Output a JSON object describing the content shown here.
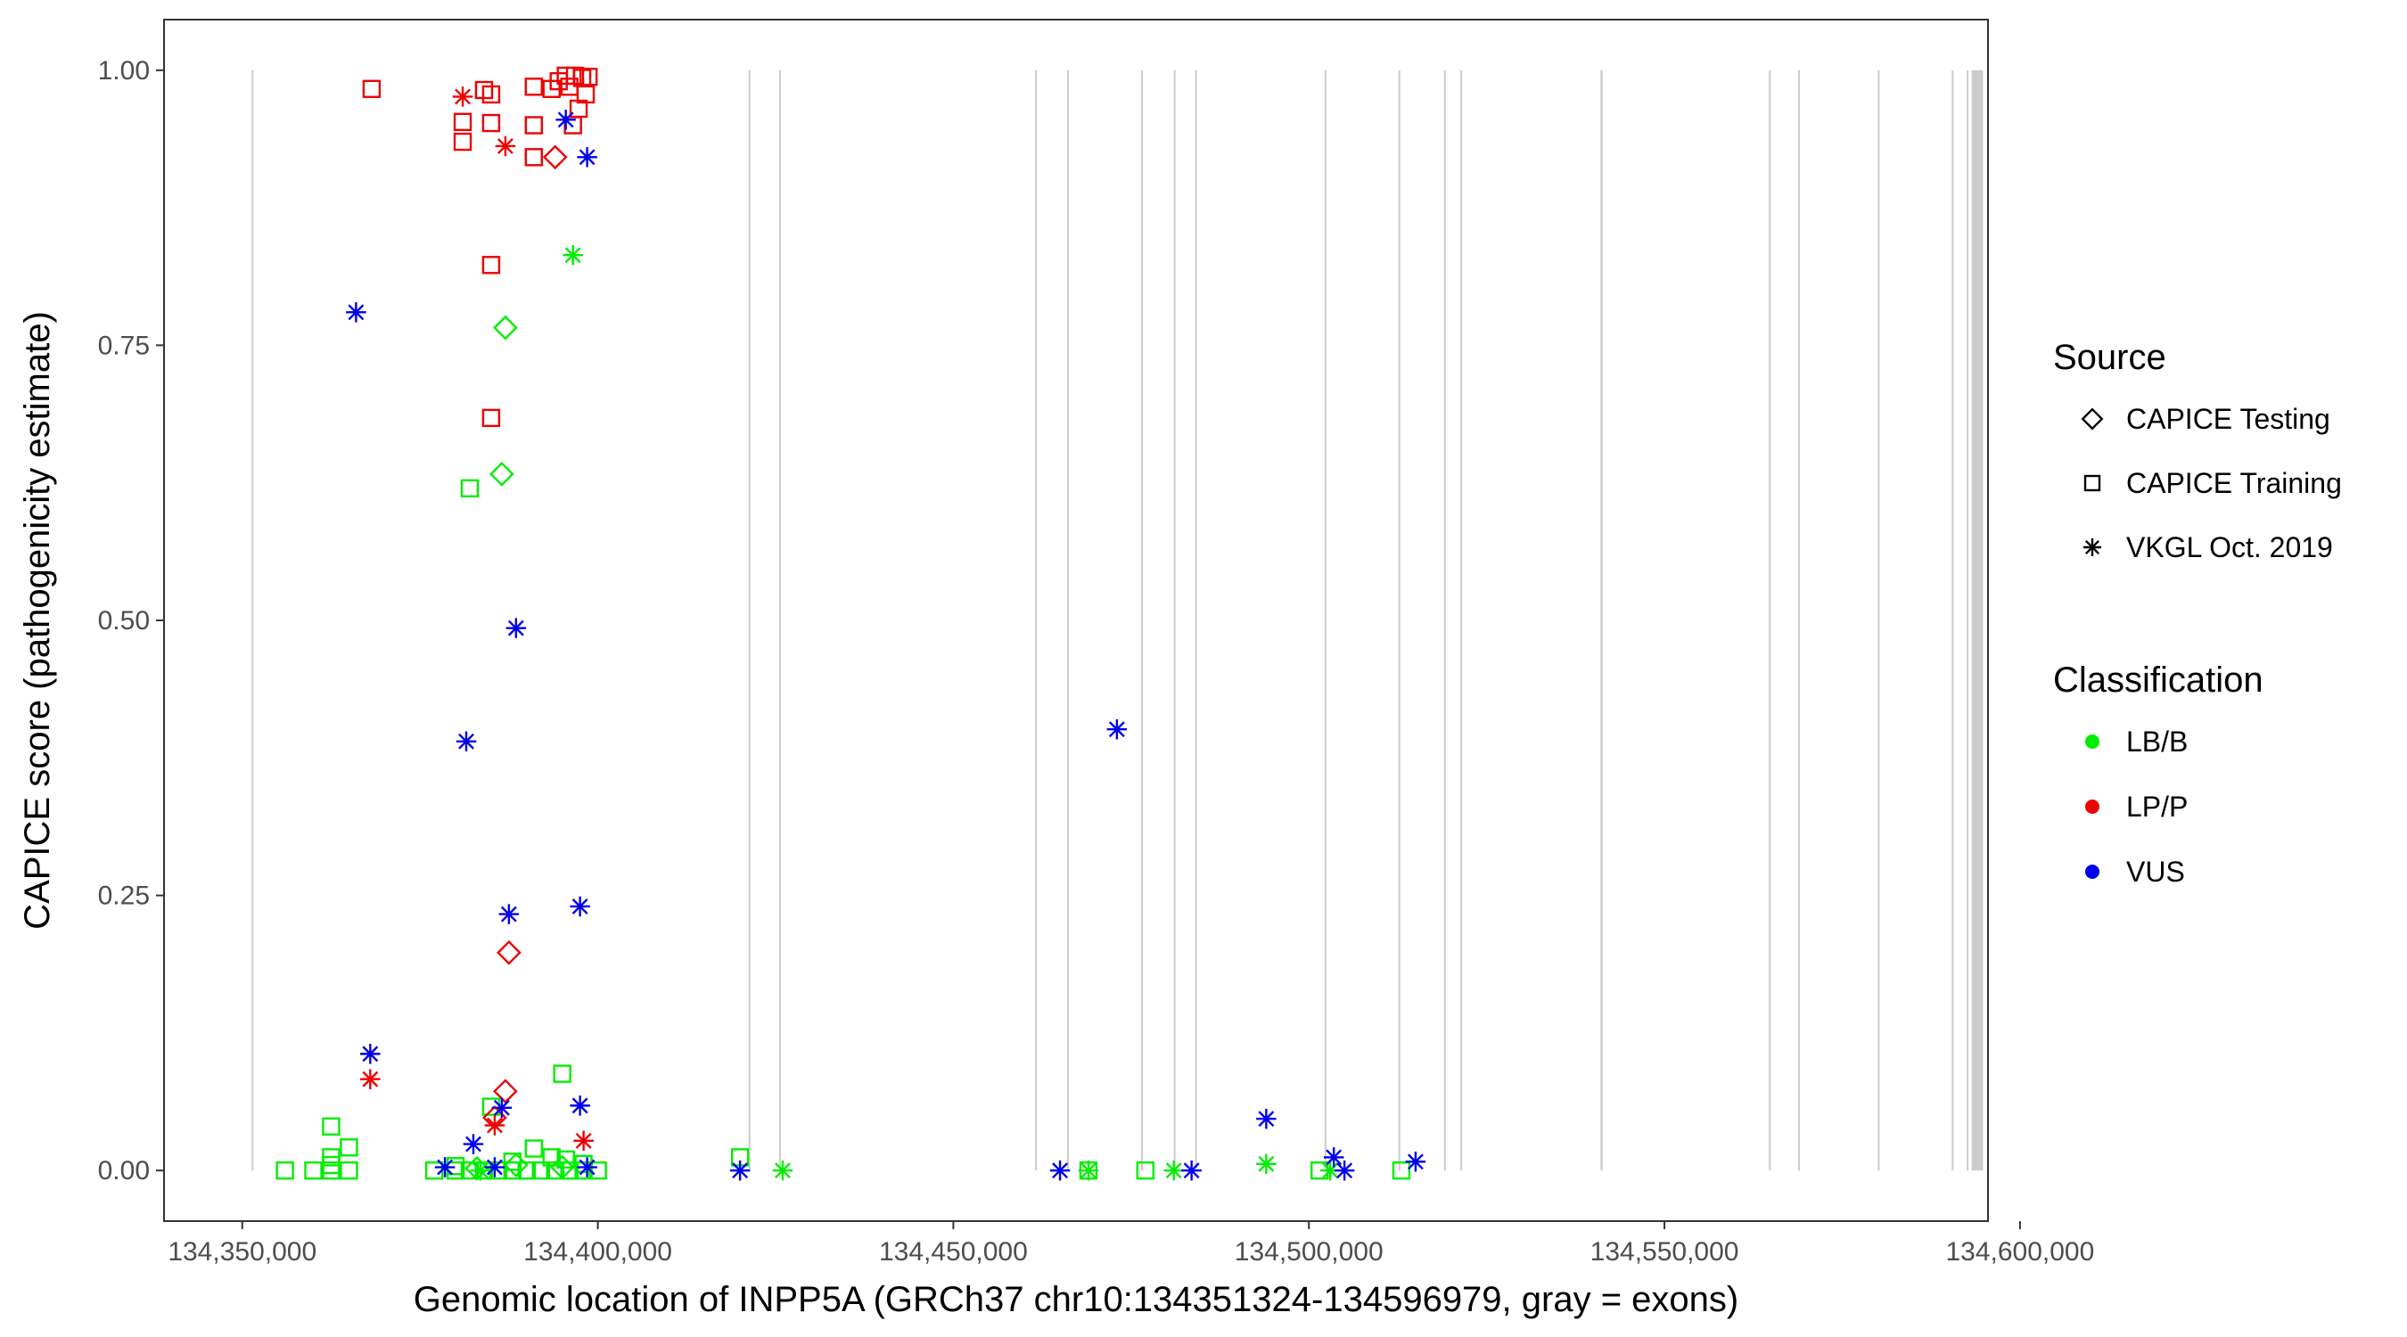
{
  "chart_data": {
    "type": "scatter",
    "title": "",
    "xlabel": "Genomic location of INPP5A (GRCh37 chr10:134351324-134596979, gray = exons)",
    "ylabel": "CAPICE score (pathogenicity estimate)",
    "xlim": [
      134339000,
      134595500
    ],
    "ylim": [
      -0.046,
      1.046
    ],
    "x_ticks": [
      134350000,
      134400000,
      134450000,
      134500000,
      134550000,
      134600000
    ],
    "x_tick_labels": [
      "134,350,000",
      "134,400,000",
      "134,450,000",
      "134,500,000",
      "134,550,000",
      "134,600,000"
    ],
    "y_ticks": [
      0,
      0.25,
      0.5,
      0.75,
      1.0
    ],
    "y_tick_labels": [
      "0.00",
      "0.25",
      "0.50",
      "0.75",
      "1.00"
    ],
    "grid": false,
    "legend_position": "right",
    "exons": [
      {
        "start": 134351324,
        "end": 134351480
      },
      {
        "start": 134421200,
        "end": 134421300
      },
      {
        "start": 134425500,
        "end": 134425600
      },
      {
        "start": 134461500,
        "end": 134461600
      },
      {
        "start": 134466000,
        "end": 134466100
      },
      {
        "start": 134476400,
        "end": 134476500
      },
      {
        "start": 134481000,
        "end": 134481100
      },
      {
        "start": 134484000,
        "end": 134484100
      },
      {
        "start": 134502200,
        "end": 134502300
      },
      {
        "start": 134512600,
        "end": 134512700
      },
      {
        "start": 134519000,
        "end": 134519100
      },
      {
        "start": 134521300,
        "end": 134521400
      },
      {
        "start": 134541000,
        "end": 134541300
      },
      {
        "start": 134564700,
        "end": 134564900
      },
      {
        "start": 134568800,
        "end": 134569000
      },
      {
        "start": 134580000,
        "end": 134580100
      },
      {
        "start": 134590400,
        "end": 134590500
      },
      {
        "start": 134592500,
        "end": 134592600
      },
      {
        "start": 134593200,
        "end": 134594800
      }
    ],
    "legend": {
      "source_title": "Source",
      "source_items": [
        {
          "label": "CAPICE Testing",
          "shape": "diamond"
        },
        {
          "label": "CAPICE Training",
          "shape": "square"
        },
        {
          "label": "VKGL Oct. 2019",
          "shape": "asterisk"
        }
      ],
      "class_title": "Classification",
      "class_items": [
        {
          "label": "LB/B",
          "color": "#00ee00"
        },
        {
          "label": "LP/P",
          "color": "#ee0000"
        },
        {
          "label": "VUS",
          "color": "#0000ee"
        }
      ]
    },
    "colors": {
      "LB/B": "#00ee00",
      "LP/P": "#ee0000",
      "VUS": "#0000ee"
    },
    "series": [
      {
        "name": "CAPICE Training",
        "shape": "square",
        "class": "LP/P",
        "points": [
          [
            134368200,
            0.983
          ],
          [
            134381000,
            0.953
          ],
          [
            134381000,
            0.935
          ],
          [
            134384000,
            0.982
          ],
          [
            134385000,
            0.978
          ],
          [
            134385000,
            0.952
          ],
          [
            134391000,
            0.985
          ],
          [
            134391000,
            0.95
          ],
          [
            134391000,
            0.921
          ],
          [
            134393500,
            0.983
          ],
          [
            134394500,
            0.99
          ],
          [
            134395500,
            0.995
          ],
          [
            134396000,
            0.985
          ],
          [
            134396800,
            0.995
          ],
          [
            134397300,
            0.965
          ],
          [
            134397800,
            0.993
          ],
          [
            134398300,
            0.978
          ],
          [
            134398700,
            0.994
          ],
          [
            134396500,
            0.95
          ],
          [
            134385000,
            0.823
          ],
          [
            134385000,
            0.684
          ]
        ]
      },
      {
        "name": "CAPICE Training",
        "shape": "square",
        "class": "LB/B",
        "points": [
          [
            134356000,
            0.0
          ],
          [
            134360000,
            0.0
          ],
          [
            134362500,
            0.0
          ],
          [
            134362500,
            0.005
          ],
          [
            134362500,
            0.012
          ],
          [
            134362500,
            0.04
          ],
          [
            134365000,
            0.0
          ],
          [
            134365000,
            0.021
          ],
          [
            134377000,
            0.0
          ],
          [
            134380000,
            0.0
          ],
          [
            134382000,
            0.0
          ],
          [
            134384000,
            0.0
          ],
          [
            134386000,
            0.0
          ],
          [
            134388000,
            0.0
          ],
          [
            134390000,
            0.0
          ],
          [
            134392000,
            0.0
          ],
          [
            134394000,
            0.0
          ],
          [
            134396000,
            0.0
          ],
          [
            134398000,
            0.0
          ],
          [
            134400000,
            0.0
          ],
          [
            134380000,
            0.004
          ],
          [
            134388000,
            0.008
          ],
          [
            134393500,
            0.012
          ],
          [
            134395500,
            0.01
          ],
          [
            134398000,
            0.006
          ],
          [
            134391000,
            0.02
          ],
          [
            134385000,
            0.058
          ],
          [
            134382000,
            0.62
          ],
          [
            134395000,
            0.088
          ],
          [
            134420000,
            0.012
          ],
          [
            134469000,
            0.0
          ],
          [
            134477000,
            0.0
          ],
          [
            134501500,
            0.0
          ],
          [
            134513000,
            0.0
          ]
        ]
      },
      {
        "name": "CAPICE Testing",
        "shape": "diamond",
        "class": "LP/P",
        "points": [
          [
            134394000,
            0.921
          ],
          [
            134387500,
            0.198
          ],
          [
            134387000,
            0.072
          ],
          [
            134385500,
            0.048
          ]
        ]
      },
      {
        "name": "CAPICE Testing",
        "shape": "diamond",
        "class": "LB/B",
        "points": [
          [
            134387000,
            0.766
          ],
          [
            134386500,
            0.633
          ],
          [
            134388500,
            0.005
          ],
          [
            134395000,
            0.003
          ],
          [
            134383000,
            0.002
          ]
        ]
      },
      {
        "name": "VKGL Oct. 2019",
        "shape": "asterisk",
        "class": "LP/P",
        "points": [
          [
            134381000,
            0.976
          ],
          [
            134387000,
            0.931
          ],
          [
            134368000,
            0.083
          ],
          [
            134398000,
            0.027
          ],
          [
            134385500,
            0.041
          ]
        ]
      },
      {
        "name": "VKGL Oct. 2019",
        "shape": "asterisk",
        "class": "LB/B",
        "points": [
          [
            134396500,
            0.832
          ],
          [
            134426000,
            0.0
          ],
          [
            134469000,
            0.0
          ],
          [
            134481000,
            0.0
          ],
          [
            134494000,
            0.006
          ],
          [
            134503000,
            0.0
          ],
          [
            134383500,
            0.0
          ]
        ]
      },
      {
        "name": "VKGL Oct. 2019",
        "shape": "asterisk",
        "class": "VUS",
        "points": [
          [
            134395500,
            0.955
          ],
          [
            134398500,
            0.921
          ],
          [
            134366000,
            0.78
          ],
          [
            134388500,
            0.493
          ],
          [
            134473000,
            0.401
          ],
          [
            134381500,
            0.39
          ],
          [
            134397500,
            0.24
          ],
          [
            134387500,
            0.233
          ],
          [
            134368000,
            0.106
          ],
          [
            134397500,
            0.059
          ],
          [
            134386500,
            0.057
          ],
          [
            134382500,
            0.024
          ],
          [
            134378500,
            0.003
          ],
          [
            134385500,
            0.003
          ],
          [
            134398500,
            0.003
          ],
          [
            134420000,
            0.0
          ],
          [
            134465000,
            0.0
          ],
          [
            134483500,
            0.0
          ],
          [
            134494000,
            0.047
          ],
          [
            134503500,
            0.012
          ],
          [
            134505000,
            0.0
          ],
          [
            134515000,
            0.008
          ]
        ]
      }
    ]
  }
}
